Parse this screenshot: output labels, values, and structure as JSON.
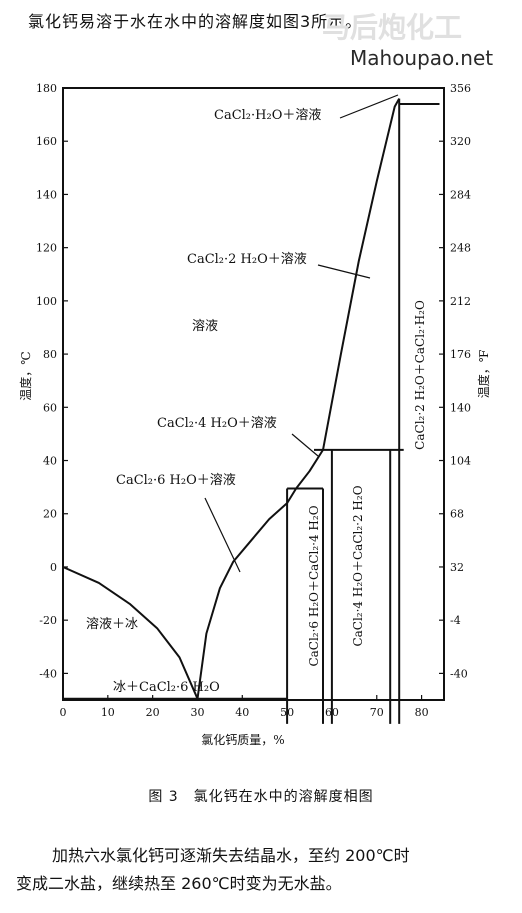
{
  "header": {
    "text": "氯化钙易溶于水在水中的溶解度如图3所示。"
  },
  "watermark": {
    "main": "马后炮化工",
    "url": "Mahoupao.net"
  },
  "chart_data": {
    "type": "line",
    "xlabel": "氯化钙质量，%",
    "ylabel_left": "温度，℃",
    "ylabel_right": "温度，℉",
    "xlim": [
      0,
      85
    ],
    "ylim": [
      -50,
      180
    ],
    "x_ticks": [
      "0",
      "10",
      "20",
      "30",
      "40",
      "50",
      "60",
      "70",
      "80"
    ],
    "y_ticks_left": [
      "180",
      "160",
      "140",
      "120",
      "100",
      "80",
      "60",
      "40",
      "20",
      "0",
      "-20",
      "-40"
    ],
    "y_ticks_right": [
      "356",
      "320",
      "284",
      "248",
      "212",
      "176",
      "140",
      "104",
      "68",
      "32",
      "-4",
      "-40"
    ],
    "series": [
      {
        "points": [
          [
            0,
            0
          ],
          [
            8,
            -6
          ],
          [
            15,
            -14
          ],
          [
            21,
            -23
          ],
          [
            26,
            -34
          ],
          [
            30,
            -49.5
          ]
        ]
      },
      {
        "points": [
          [
            30,
            -49.5
          ],
          [
            32,
            -25
          ],
          [
            35,
            -8
          ],
          [
            38,
            2
          ],
          [
            42,
            10
          ],
          [
            46,
            18
          ],
          [
            50,
            24
          ],
          [
            52,
            29.5
          ]
        ]
      },
      {
        "points": [
          [
            52,
            29.5
          ],
          [
            55,
            36
          ],
          [
            58,
            44
          ]
        ]
      },
      {
        "points": [
          [
            58,
            44
          ],
          [
            62,
            80
          ],
          [
            66,
            115
          ],
          [
            70,
            145
          ],
          [
            74,
            173
          ],
          [
            75,
            176
          ]
        ]
      },
      {
        "points": [
          [
            0,
            -49.5
          ],
          [
            50,
            -49.5
          ]
        ]
      },
      {
        "points": [
          [
            50,
            29.5
          ],
          [
            58,
            29.5
          ]
        ]
      },
      {
        "points": [
          [
            56,
            44
          ],
          [
            76,
            44
          ]
        ]
      },
      {
        "points": [
          [
            75,
            174
          ],
          [
            84,
            174
          ]
        ]
      },
      {
        "points": [
          [
            50,
            -59
          ],
          [
            50,
            29.5
          ]
        ]
      },
      {
        "points": [
          [
            58,
            -59
          ],
          [
            58,
            29.5
          ]
        ]
      },
      {
        "points": [
          [
            60,
            -59
          ],
          [
            60,
            44
          ]
        ]
      },
      {
        "points": [
          [
            73,
            -59
          ],
          [
            73,
            44
          ]
        ]
      },
      {
        "points": [
          [
            75,
            -59
          ],
          [
            75,
            176
          ]
        ]
      }
    ],
    "annotations": {
      "solution_ice": "溶液＋冰",
      "ice_hexahydrate": "冰＋CaCl₂·6 H₂O",
      "solution": "溶液",
      "hexahydrate_solution": "CaCl₂·6 H₂O＋溶液",
      "tetrahydrate_solution": "CaCl₂·4 H₂O＋溶液",
      "dihydrate_solution": "CaCl₂·2 H₂O＋溶液",
      "monohydrate_solution": "CaCl₂·H₂O＋溶液",
      "hexa_tetra": "CaCl₂·6 H₂O＋CaCl₂·4 H₂O",
      "tetra_di": "CaCl₂·4 H₂O＋CaCl₂·2 H₂O",
      "di_mono": "CaCl₂·2 H₂O＋CaCl₂·H₂O"
    }
  },
  "caption": "图 3　氯化钙在水中的溶解度相图",
  "note": {
    "line1": "加热六水氯化钙可逐渐失去结晶水，至约 200℃时",
    "line2": "变成二水盐，继续热至 260℃时变为无水盐。"
  }
}
